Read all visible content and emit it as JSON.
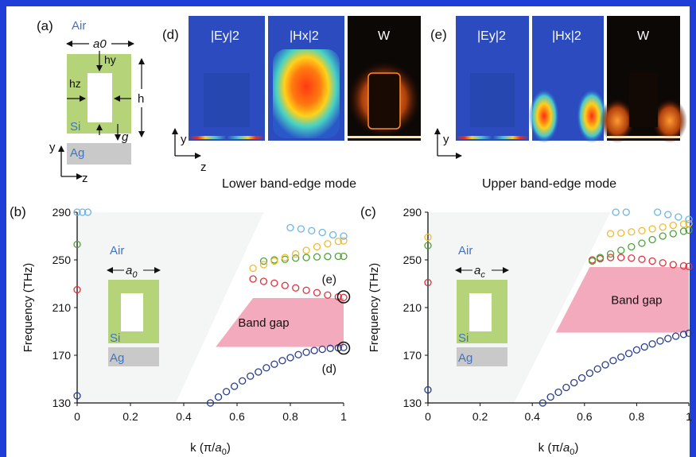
{
  "colors": {
    "frame": "#1f3ed8",
    "si_green": "#b5d47a",
    "ag_gray": "#c9c9c9",
    "bandgap_pink": "#f4aabd",
    "label_blue": "#3f74c3",
    "marker_dark_blue": "#283d8c",
    "marker_red": "#e0313b",
    "marker_green": "#4ea338",
    "marker_yellow": "#f0bb2e",
    "marker_light_blue": "#6fb5e0",
    "lightcone_gray": "#f4f6f5"
  },
  "panel_a": {
    "label": "(a)",
    "air": "Air",
    "a0": "a0",
    "hy": "hy",
    "hz": "hz",
    "h": "h",
    "si": "Si",
    "g": "g",
    "ag": "Ag",
    "y": "y",
    "z": "z"
  },
  "panel_d": {
    "label": "(d)",
    "field1": "|Ey|2",
    "field2": "|Hx|2",
    "field3": "W",
    "caption": "Lower band-edge mode",
    "y": "y",
    "z": "z"
  },
  "panel_e": {
    "label": "(e)",
    "field1": "|Ey|2",
    "field2": "|Hx|2",
    "field3": "W",
    "caption": "Upper band-edge mode",
    "y": "y"
  },
  "chart_data": [
    {
      "panel": "(b)",
      "type": "scatter",
      "xlabel": "k (π/a0)",
      "ylabel": "Frequency (THz)",
      "xlim": [
        0,
        1
      ],
      "ylim": [
        130,
        290
      ],
      "xticks": [
        0,
        0.2,
        0.4,
        0.6,
        0.8,
        1
      ],
      "yticks": [
        130,
        170,
        210,
        250,
        290
      ],
      "bandgap": {
        "label": "Band gap",
        "ymin": 177,
        "ymax": 218
      },
      "inset": {
        "air": "Air",
        "a": "a0",
        "si": "Si",
        "ag": "Ag"
      },
      "markers": [
        {
          "label": "(e)",
          "x": 1.0,
          "y": 219
        },
        {
          "label": "(d)",
          "x": 1.0,
          "y": 176
        }
      ],
      "series": [
        {
          "color": "#283d8c",
          "x": [
            0.5,
            0.53,
            0.56,
            0.59,
            0.62,
            0.65,
            0.68,
            0.71,
            0.74,
            0.77,
            0.8,
            0.83,
            0.86,
            0.89,
            0.92,
            0.95,
            0.98,
            1.0
          ],
          "y": [
            130,
            135,
            139.5,
            144,
            148.5,
            152.5,
            156,
            159.5,
            162.5,
            165.5,
            168,
            170.5,
            172.5,
            174,
            175,
            175.8,
            176.2,
            176.5
          ]
        },
        {
          "color": "#e0313b",
          "x": [
            0.66,
            0.7,
            0.74,
            0.78,
            0.82,
            0.86,
            0.9,
            0.94,
            0.98,
            1.0
          ],
          "y": [
            234,
            232,
            230.5,
            228.5,
            226.5,
            224.5,
            222.5,
            220.5,
            219,
            218.5
          ]
        },
        {
          "color": "#4ea338",
          "x": [
            0.7,
            0.74,
            0.78,
            0.82,
            0.86,
            0.9,
            0.94,
            0.98,
            1.0
          ],
          "y": [
            249,
            250,
            250.5,
            251.5,
            252,
            252.5,
            252.8,
            253,
            253
          ]
        },
        {
          "color": "#f0bb2e",
          "x": [
            0.66,
            0.7,
            0.74,
            0.78,
            0.82,
            0.86,
            0.9,
            0.94,
            0.98,
            1.0
          ],
          "y": [
            243,
            246,
            249,
            252,
            255,
            258,
            261,
            263.5,
            265.5,
            266
          ]
        },
        {
          "color": "#6fb5e0",
          "x": [
            0.8,
            0.84,
            0.88,
            0.92,
            0.96,
            1.0
          ],
          "y": [
            277,
            276,
            274.5,
            273,
            271,
            270
          ]
        },
        {
          "color": "#6fb5e0",
          "x": [
            0.0,
            0.02,
            0.04
          ],
          "y": [
            290,
            290,
            290
          ]
        },
        {
          "color": "#4ea338",
          "x": [
            0.0
          ],
          "y": [
            263
          ]
        },
        {
          "color": "#e0313b",
          "x": [
            0.0
          ],
          "y": [
            225
          ]
        },
        {
          "color": "#283d8c",
          "x": [
            0.0
          ],
          "y": [
            136
          ]
        }
      ]
    },
    {
      "panel": "(c)",
      "type": "scatter",
      "xlabel": "k (π/a0)",
      "ylabel": "Frequency (THz)",
      "xlim": [
        0,
        1
      ],
      "ylim": [
        130,
        290
      ],
      "xticks": [
        0,
        0.2,
        0.4,
        0.6,
        0.8,
        1
      ],
      "yticks": [
        130,
        170,
        210,
        250,
        290
      ],
      "bandgap": {
        "label": "Band gap",
        "ymin": 189,
        "ymax": 244
      },
      "inset": {
        "air": "Air",
        "a": "ac",
        "si": "Si",
        "ag": "Ag"
      },
      "series": [
        {
          "color": "#283d8c",
          "x": [
            0.44,
            0.47,
            0.5,
            0.53,
            0.56,
            0.59,
            0.62,
            0.65,
            0.68,
            0.71,
            0.74,
            0.77,
            0.8,
            0.83,
            0.86,
            0.89,
            0.92,
            0.95,
            0.98,
            1.0
          ],
          "y": [
            130,
            135,
            139,
            143,
            147,
            151,
            155,
            158.5,
            162,
            165.5,
            168.5,
            171.5,
            174.5,
            177,
            179.5,
            182,
            184,
            186,
            187.5,
            188.5
          ]
        },
        {
          "color": "#e0313b",
          "x": [
            0.63,
            0.66,
            0.7,
            0.74,
            0.78,
            0.82,
            0.86,
            0.9,
            0.94,
            0.98,
            1.0
          ],
          "y": [
            250,
            251,
            252,
            252,
            251.5,
            250.5,
            249,
            247.5,
            246,
            245,
            244.5
          ]
        },
        {
          "color": "#4ea338",
          "x": [
            0.63,
            0.66,
            0.7,
            0.74,
            0.78,
            0.82,
            0.86,
            0.9,
            0.94,
            0.98,
            1.0
          ],
          "y": [
            249,
            252,
            255,
            258,
            261,
            264,
            267,
            270,
            272,
            274,
            275
          ]
        },
        {
          "color": "#f0bb2e",
          "x": [
            0.7,
            0.74,
            0.78,
            0.82,
            0.86,
            0.9,
            0.94,
            0.98,
            1.0
          ],
          "y": [
            272,
            272.5,
            273.5,
            274.5,
            276,
            277.5,
            279,
            280,
            280.5
          ]
        },
        {
          "color": "#6fb5e0",
          "x": [
            0.72,
            0.76,
            0.88,
            0.92,
            0.96,
            1.0
          ],
          "y": [
            290,
            290,
            290,
            288,
            286,
            284
          ]
        },
        {
          "color": "#f0bb2e",
          "x": [
            0.0
          ],
          "y": [
            269
          ]
        },
        {
          "color": "#4ea338",
          "x": [
            0.0
          ],
          "y": [
            262
          ]
        },
        {
          "color": "#e0313b",
          "x": [
            0.0
          ],
          "y": [
            231
          ]
        },
        {
          "color": "#283d8c",
          "x": [
            0.0
          ],
          "y": [
            141
          ]
        }
      ]
    }
  ]
}
